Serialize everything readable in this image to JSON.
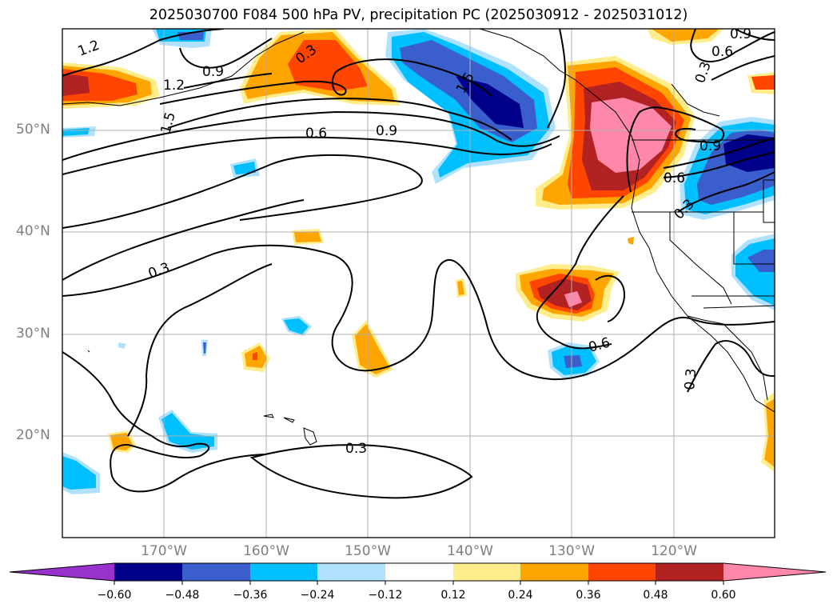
{
  "title": "2025030700 F084 500 hPa PV, precipitation PC (2025030912 - 2025031012)",
  "lat_labels": [
    "50°N",
    "40°N",
    "30°N",
    "20°N"
  ],
  "lon_labels": [
    "170°W",
    "160°W",
    "150°W",
    "140°W",
    "130°W",
    "120°W"
  ],
  "contour_labels": [
    "1.2",
    "0.9",
    "1.2",
    "1.5",
    "0.6",
    "0.9",
    "0.3",
    "0.6",
    "0.9",
    "0.3",
    "1.5",
    "0.6",
    "0.9",
    "0.3",
    "0.3",
    "0.6",
    "0.3",
    "0.3"
  ],
  "colorbar": {
    "ticks": [
      "−0.60",
      "−0.48",
      "−0.36",
      "−0.24",
      "−0.12",
      "0.12",
      "0.24",
      "0.36",
      "0.48",
      "0.60"
    ],
    "colors": [
      "#9932cc",
      "#00008b",
      "#3a5fcd",
      "#00bfff",
      "#b0e2ff",
      "#ffffff",
      "#ffec8b",
      "#ffa500",
      "#ff4500",
      "#b22222",
      "#ff88aa"
    ]
  }
}
